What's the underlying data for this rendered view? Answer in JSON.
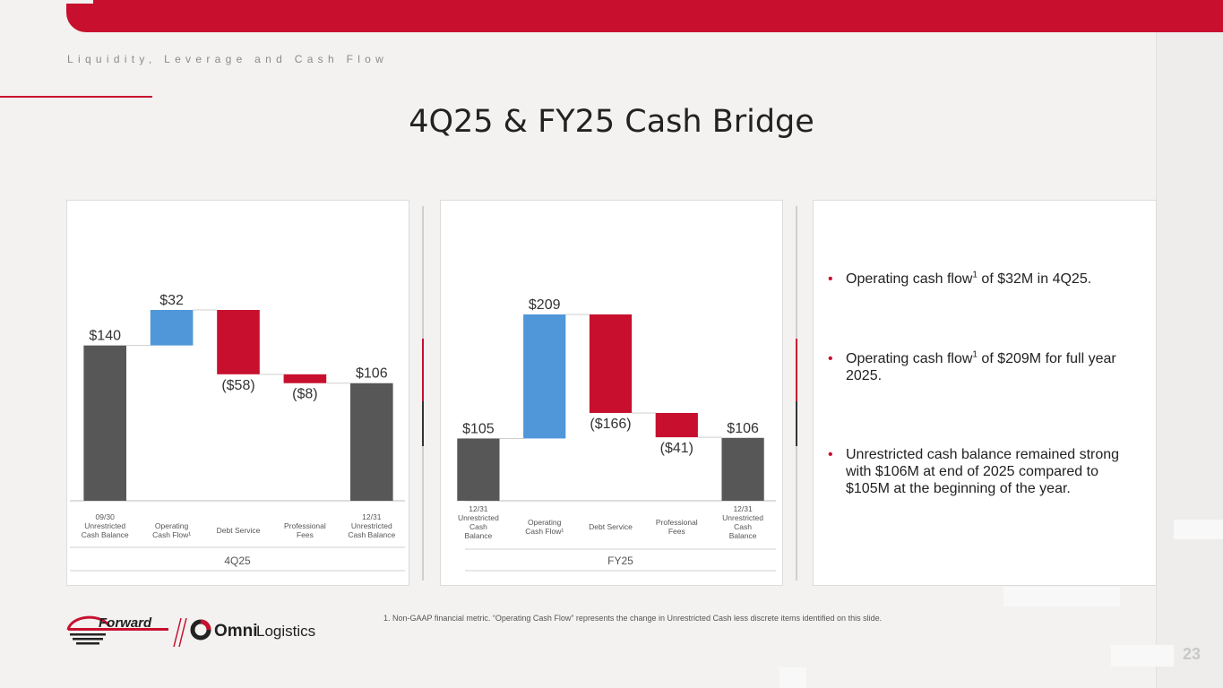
{
  "section_label": "Liquidity, Leverage and Cash Flow",
  "title": "4Q25 & FY25 Cash Bridge",
  "bullets": [
    {
      "pre": "Operating cash flow",
      "sup": "1",
      "post": " of $32M in 4Q25."
    },
    {
      "pre": "Operating cash flow",
      "sup": "1",
      "post": " of $209M for full year 2025."
    },
    {
      "pre": "Unrestricted cash balance remained strong with $106M at end of 2025 compared to $105M at the beginning of the year.",
      "sup": "",
      "post": ""
    }
  ],
  "footnote": "1. Non-GAAP financial metric. “Operating Cash Flow” represents the change in Unrestricted Cash less discrete items identified on this slide.",
  "page_number": "23",
  "logo": {
    "forward": "Forward",
    "omni": "Omni",
    "logistics": "Logistics"
  },
  "colors": {
    "total": "#575757",
    "positive": "#4f97d8",
    "negative": "#c8102e",
    "accent": "#c8102e"
  },
  "chart_data": [
    {
      "type": "bar",
      "subtype": "waterfall",
      "group_label": "4Q25",
      "categories": [
        [
          "09/30",
          "Unrestricted",
          "Cash Balance"
        ],
        [
          "Operating",
          "Cash Flow¹"
        ],
        [
          "Debt Service"
        ],
        [
          "Professional",
          "Fees"
        ],
        [
          "12/31",
          "Unrestricted",
          "Cash Balance"
        ]
      ],
      "values": [
        140,
        32,
        -58,
        -8,
        106
      ],
      "kinds": [
        "total",
        "positive",
        "negative",
        "negative",
        "total"
      ],
      "labels": [
        "$140",
        "$32",
        "($58)",
        "($8)",
        "$106"
      ]
    },
    {
      "type": "bar",
      "subtype": "waterfall",
      "group_label": "FY25",
      "categories": [
        [
          "12/31",
          "Unrestricted",
          "Cash",
          "Balance"
        ],
        [
          "Operating",
          "Cash Flow¹"
        ],
        [
          "Debt Service"
        ],
        [
          "Professional",
          "Fees"
        ],
        [
          "12/31",
          "Unrestricted",
          "Cash",
          "Balance"
        ]
      ],
      "values": [
        105,
        209,
        -166,
        -41,
        106
      ],
      "kinds": [
        "total",
        "positive",
        "negative",
        "negative",
        "total"
      ],
      "labels": [
        "$105",
        "$209",
        "($166)",
        "($41)",
        "$106"
      ]
    }
  ]
}
